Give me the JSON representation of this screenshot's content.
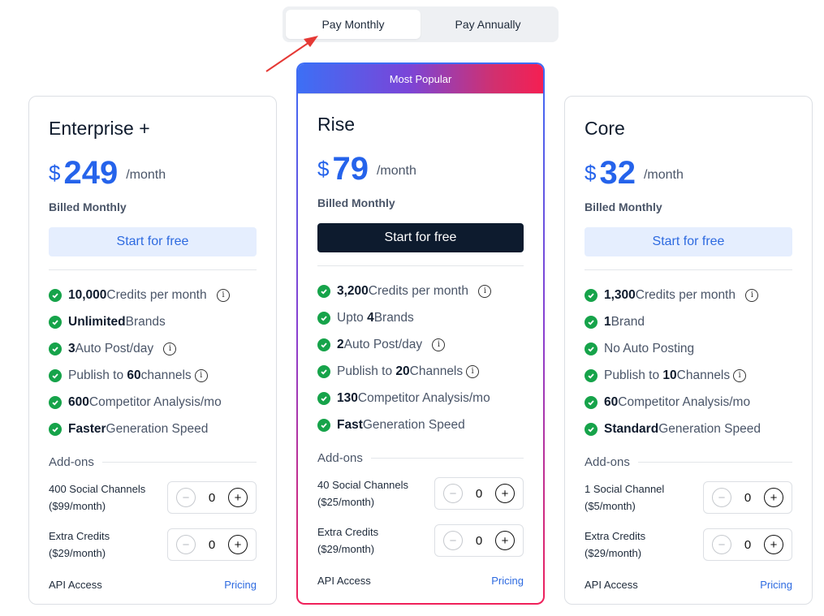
{
  "billing_toggle": {
    "monthly": "Pay Monthly",
    "annually": "Pay Annually"
  },
  "colors": {
    "accent": "#2563eb",
    "check": "#16a34a",
    "dark_button": "#0d1b2e",
    "light_button": "#e5eefe",
    "popular_gradient_start": "#3d6ff5",
    "popular_gradient_end": "#f51f52",
    "annotation_arrow": "#e53935"
  },
  "plans": [
    {
      "name": "Enterprise +",
      "currency": "$",
      "price": "249",
      "period": "/month",
      "billed": "Billed Monthly",
      "cta": "Start for free",
      "features": [
        {
          "bold": "10,000",
          "text": " Credits per month",
          "info": true
        },
        {
          "bold": "Unlimited",
          "text": " Brands"
        },
        {
          "bold": "3",
          "text": " Auto Post/day",
          "info": true
        },
        {
          "pre": "Publish to ",
          "bold": "60",
          "text": " channels",
          "info": true
        },
        {
          "bold": "600",
          "text": " Competitor Analysis/mo"
        },
        {
          "bold": "Faster",
          "text": " Generation Speed"
        }
      ],
      "addons_title": "Add-ons",
      "addons": [
        {
          "line1": "400 Social Channels",
          "line2": "($99/month)",
          "value": "0"
        },
        {
          "line1": "Extra Credits",
          "line2": "($29/month)",
          "value": "0"
        }
      ],
      "api_label": "API Access",
      "api_link": "Pricing"
    },
    {
      "badge": "Most Popular",
      "name": "Rise",
      "currency": "$",
      "price": "79",
      "period": "/month",
      "billed": "Billed Monthly",
      "cta": "Start for free",
      "features": [
        {
          "bold": "3,200",
          "text": " Credits per month",
          "info": true
        },
        {
          "pre": "Upto ",
          "bold": "4",
          "text": " Brands"
        },
        {
          "bold": "2",
          "text": " Auto Post/day",
          "info": true
        },
        {
          "pre": "Publish to ",
          "bold": "20",
          "text": " Channels",
          "info": true
        },
        {
          "bold": "130",
          "text": " Competitor Analysis/mo"
        },
        {
          "bold": "Fast",
          "text": " Generation Speed"
        }
      ],
      "addons_title": "Add-ons",
      "addons": [
        {
          "line1": "40 Social Channels",
          "line2": "($25/month)",
          "value": "0"
        },
        {
          "line1": "Extra Credits",
          "line2": "($29/month)",
          "value": "0"
        }
      ],
      "api_label": "API Access",
      "api_link": "Pricing"
    },
    {
      "name": "Core",
      "currency": "$",
      "price": "32",
      "period": "/month",
      "billed": "Billed Monthly",
      "cta": "Start for free",
      "features": [
        {
          "bold": "1,300",
          "text": " Credits per month",
          "info": true
        },
        {
          "bold": "1",
          "text": " Brand"
        },
        {
          "text": "No Auto Posting"
        },
        {
          "pre": "Publish to ",
          "bold": "10",
          "text": " Channels",
          "info": true
        },
        {
          "bold": "60",
          "text": " Competitor Analysis/mo"
        },
        {
          "bold": "Standard",
          "text": " Generation Speed"
        }
      ],
      "addons_title": "Add-ons",
      "addons": [
        {
          "line1": "1 Social Channel",
          "line2": "($5/month)",
          "value": "0"
        },
        {
          "line1": "Extra Credits",
          "line2": "($29/month)",
          "value": "0"
        }
      ],
      "api_label": "API Access",
      "api_link": "Pricing"
    }
  ]
}
